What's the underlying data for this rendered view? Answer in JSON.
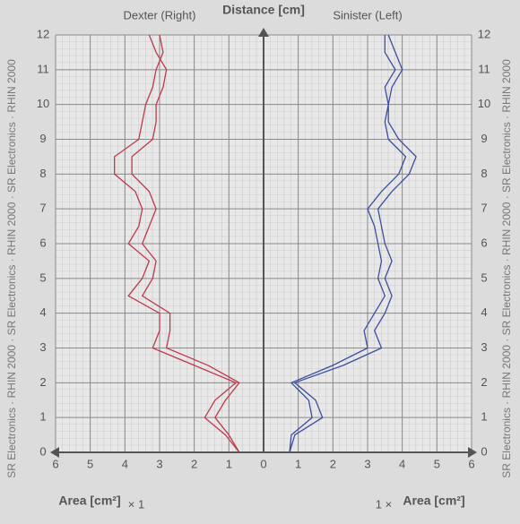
{
  "center_label": "Distance [cm]",
  "side_text": "SR Electronics · RHIN 2000 · SR Electronics · RHIN 2000 · SR Electronics · RHIN 2000",
  "chart_data": [
    {
      "type": "line",
      "title": "Dexter (Right)",
      "xlabel": "Area [cm²]",
      "scale_label": "× 1",
      "xlim": [
        6,
        0
      ],
      "xticks": [
        6,
        5,
        4,
        3,
        2,
        1
      ],
      "ylim": [
        0,
        12
      ],
      "yticks": [
        0,
        1,
        2,
        3,
        4,
        5,
        6,
        7,
        8,
        9,
        10,
        11,
        12
      ],
      "grid": true,
      "y": [
        0,
        0.5,
        1,
        1.5,
        2,
        2.5,
        3,
        3.5,
        4,
        4.5,
        5,
        5.5,
        6,
        6.5,
        7,
        7.5,
        8,
        8.5,
        9,
        9.5,
        10,
        10.5,
        11,
        11.5,
        12
      ],
      "series": [
        {
          "color": "#c0394a",
          "values": [
            0.7,
            1.1,
            1.7,
            1.4,
            0.8,
            2.0,
            3.2,
            3.0,
            3.0,
            3.9,
            3.5,
            3.3,
            3.9,
            3.6,
            3.5,
            3.7,
            4.3,
            4.3,
            3.6,
            3.5,
            3.4,
            3.2,
            3.1,
            2.9,
            3.0
          ]
        },
        {
          "color": "#c0394a",
          "values": [
            0.7,
            1.0,
            1.4,
            1.1,
            0.7,
            1.6,
            2.8,
            2.7,
            2.7,
            3.5,
            3.2,
            3.1,
            3.5,
            3.3,
            3.1,
            3.3,
            3.8,
            3.8,
            3.2,
            3.1,
            3.1,
            2.9,
            2.8,
            3.1,
            3.3
          ]
        }
      ]
    },
    {
      "type": "line",
      "title": "Sinister (Left)",
      "xlabel": "Area [cm²]",
      "scale_label": "1 ×",
      "xlim": [
        0,
        6
      ],
      "xticks": [
        0,
        1,
        2,
        3,
        4,
        5,
        6
      ],
      "ylim": [
        0,
        12
      ],
      "yticks": [
        0,
        1,
        2,
        3,
        4,
        5,
        6,
        7,
        8,
        9,
        10,
        11,
        12
      ],
      "grid": true,
      "y": [
        0,
        0.5,
        1,
        1.5,
        2,
        2.5,
        3,
        3.5,
        4,
        4.5,
        5,
        5.5,
        6,
        6.5,
        7,
        7.5,
        8,
        8.5,
        9,
        9.5,
        10,
        10.5,
        11,
        11.5,
        12
      ],
      "series": [
        {
          "color": "#3a4fa0",
          "values": [
            0.75,
            0.9,
            1.7,
            1.5,
            0.9,
            2.3,
            3.4,
            3.2,
            3.5,
            3.7,
            3.5,
            3.7,
            3.5,
            3.4,
            3.3,
            3.7,
            4.2,
            4.4,
            3.9,
            3.6,
            3.6,
            3.7,
            4.0,
            3.8,
            3.6
          ]
        },
        {
          "color": "#3a4fa0",
          "values": [
            0.75,
            0.8,
            1.4,
            1.3,
            0.8,
            2.0,
            3.0,
            2.9,
            3.2,
            3.5,
            3.3,
            3.4,
            3.3,
            3.2,
            3.0,
            3.4,
            3.9,
            4.1,
            3.6,
            3.5,
            3.6,
            3.5,
            3.8,
            3.5,
            3.5
          ]
        }
      ]
    }
  ]
}
